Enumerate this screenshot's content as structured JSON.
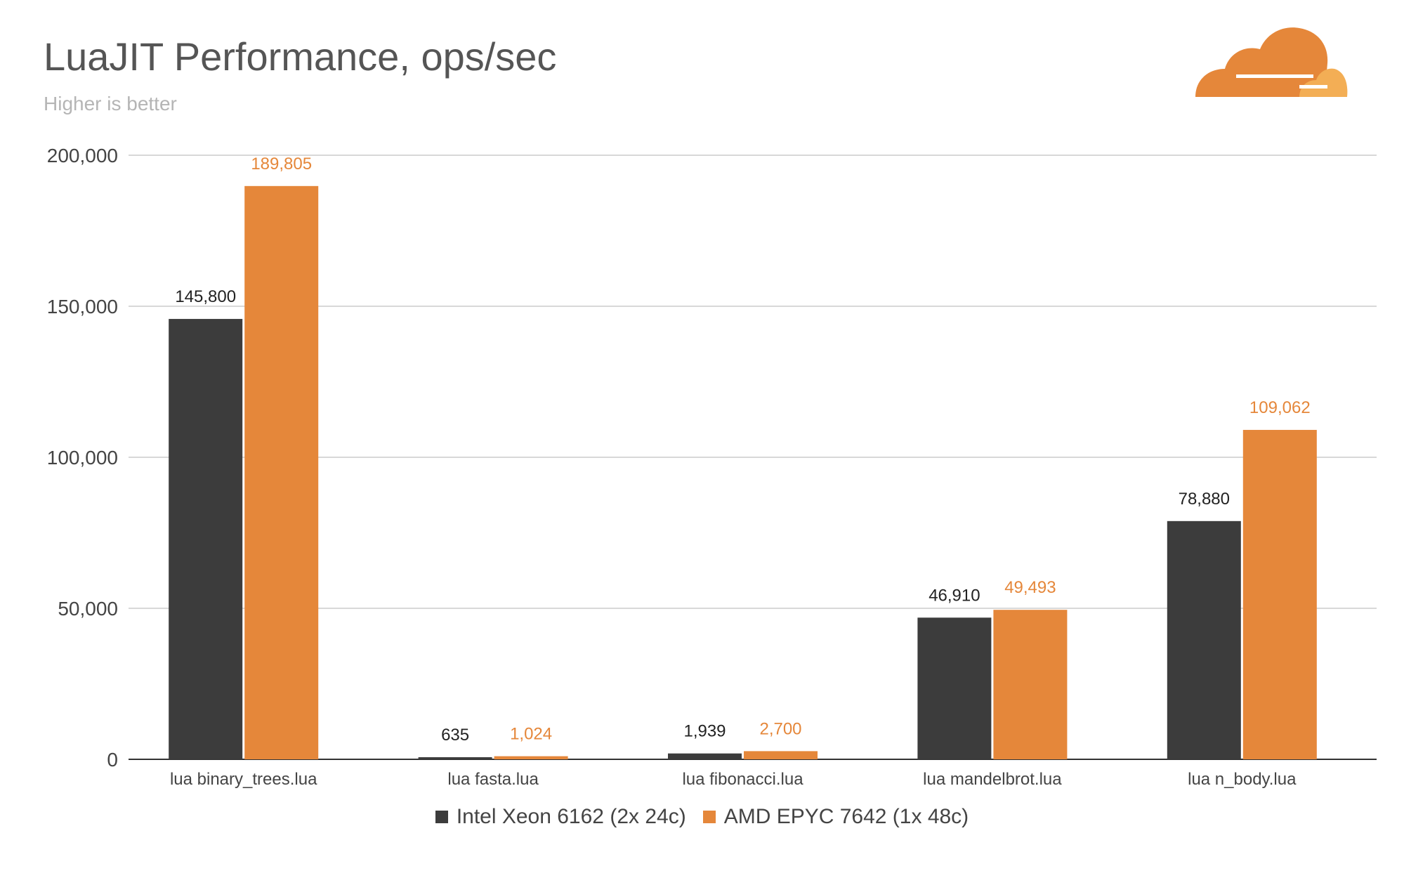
{
  "chart_data": {
    "type": "bar",
    "title": "LuaJIT Performance, ops/sec",
    "subtitle": "Higher is better",
    "xlabel": "",
    "ylabel": "",
    "ylim": [
      0,
      200000
    ],
    "yticks": [
      0,
      50000,
      100000,
      150000,
      200000
    ],
    "ytick_labels": [
      "0",
      "50,000",
      "100,000",
      "150,000",
      "200,000"
    ],
    "grid": true,
    "legend_position": "bottom",
    "categories": [
      "lua binary_trees.lua",
      "lua fasta.lua",
      "lua fibonacci.lua",
      "lua mandelbrot.lua",
      "lua n_body.lua"
    ],
    "series": [
      {
        "name": "Intel Xeon 6162 (2x 24c)",
        "color": "#3c3c3c",
        "label_color": "#222222",
        "values": [
          145800,
          635,
          1939,
          46910,
          78880
        ],
        "labels": [
          "145,800",
          "635",
          "1,939",
          "46,910",
          "78,880"
        ]
      },
      {
        "name": "AMD EPYC 7642 (1x 48c)",
        "color": "#e5873a",
        "label_color": "#e5873a",
        "values": [
          189805,
          1024,
          2700,
          49493,
          109062
        ],
        "labels": [
          "189,805",
          "1,024",
          "2,700",
          "49,493",
          "109,062"
        ]
      }
    ]
  },
  "logo": {
    "name": "cloud-logo",
    "color_primary": "#f38020",
    "color_secondary": "#faae40"
  }
}
